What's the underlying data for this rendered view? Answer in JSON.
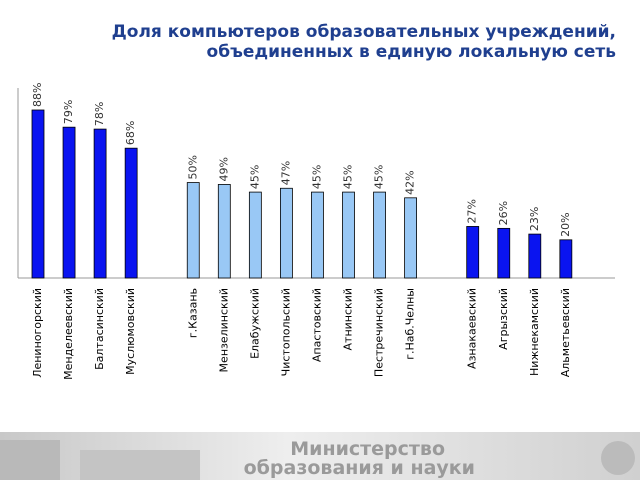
{
  "chart_data": {
    "type": "bar",
    "title": "Доля компьютеров образовательных учреждений, объединенных в единую локальную сеть",
    "categories": [
      "Лениногорский",
      "Менделеевский",
      "Балтасинский",
      "Муслюмовский",
      null,
      "г.Казань",
      "Мензелинский",
      "Елабужский",
      "Чистопольский",
      "Апастовский",
      "Атнинский",
      "Пестречинский",
      "г.Наб.Челны",
      null,
      "Азнакаевский",
      "Агрызский",
      "Нижнекамский",
      "Альметьевский"
    ],
    "values": [
      88,
      79,
      78,
      68,
      null,
      50,
      49,
      45,
      47,
      45,
      45,
      45,
      42,
      null,
      27,
      26,
      23,
      20
    ],
    "value_labels": [
      "88%",
      "79%",
      "78%",
      "68%",
      null,
      "50%",
      "49%",
      "45%",
      "47%",
      "45%",
      "45%",
      "45%",
      "42%",
      null,
      "27%",
      "26%",
      "23%",
      "20%"
    ],
    "colors": [
      "#0a14f0",
      "#0a14f0",
      "#0a14f0",
      "#0a14f0",
      null,
      "#99c8f5",
      "#99c8f5",
      "#99c8f5",
      "#99c8f5",
      "#99c8f5",
      "#99c8f5",
      "#99c8f5",
      "#99c8f5",
      null,
      "#0a14f0",
      "#0a14f0",
      "#0a14f0",
      "#0a14f0"
    ]
  },
  "footer": {
    "line1": "Министерство",
    "line2": "образования и науки"
  }
}
